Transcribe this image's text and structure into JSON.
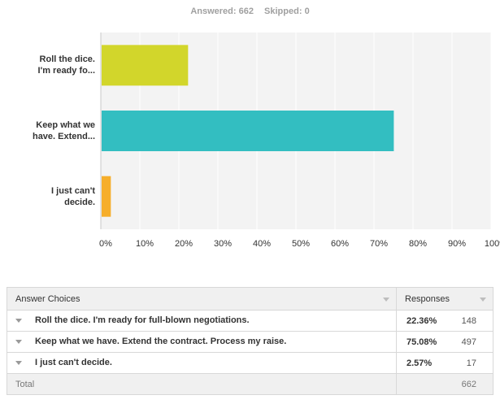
{
  "summary": {
    "answered_label": "Answered:",
    "answered_value": 662,
    "skipped_label": "Skipped:",
    "skipped_value": 0
  },
  "chart_data": {
    "type": "bar",
    "orientation": "horizontal",
    "categories": [
      "Roll the dice. I'm ready fo...",
      "Keep what we have. Extend...",
      "I just can't decide."
    ],
    "category_lines": [
      [
        "Roll the dice.",
        "I'm ready fo..."
      ],
      [
        "Keep what we",
        "have. Extend..."
      ],
      [
        "I just can't",
        "decide."
      ]
    ],
    "values": [
      22.36,
      75.08,
      2.57
    ],
    "colors": [
      "#d2d62b",
      "#33bec1",
      "#f6ae2b"
    ],
    "xlim": [
      0,
      100
    ],
    "xticks": [
      0,
      10,
      20,
      30,
      40,
      50,
      60,
      70,
      80,
      90,
      100
    ],
    "tick_labels": [
      "0%",
      "10%",
      "20%",
      "30%",
      "40%",
      "50%",
      "60%",
      "70%",
      "80%",
      "90%",
      "100%"
    ],
    "grid": true,
    "plot_background": "#f3f3f3"
  },
  "table": {
    "header": {
      "choices": "Answer Choices",
      "responses": "Responses"
    },
    "rows": [
      {
        "choice": "Roll the dice. I'm ready for full-blown negotiations.",
        "percent": "22.36%",
        "count": "148"
      },
      {
        "choice": "Keep what we have. Extend the contract. Process my raise.",
        "percent": "75.08%",
        "count": "497"
      },
      {
        "choice": "I just can't decide.",
        "percent": "2.57%",
        "count": "17"
      }
    ],
    "total": {
      "label": "Total",
      "count": "662"
    }
  }
}
